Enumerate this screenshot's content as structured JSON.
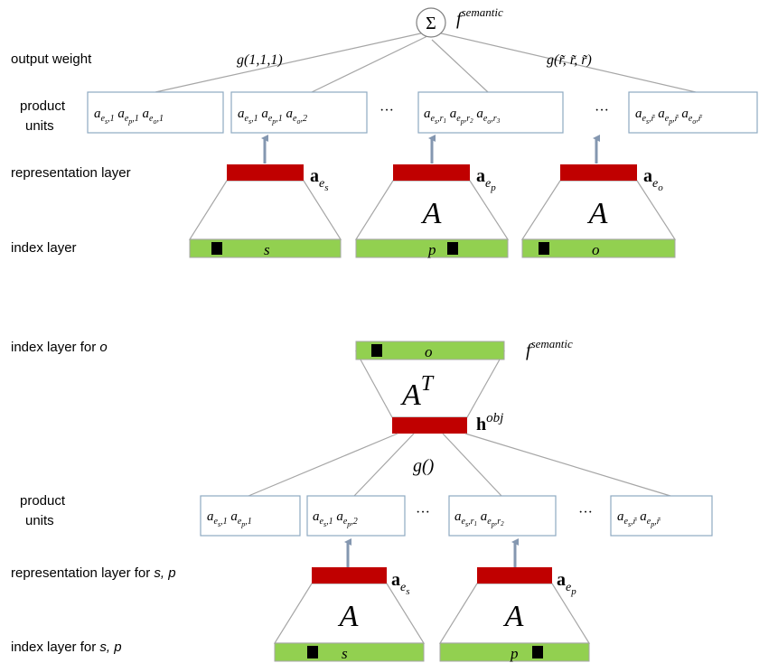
{
  "top": {
    "labels": {
      "output_weight": "output weight",
      "product_units_1": "product",
      "product_units_2": "units",
      "representation_layer": "representation layer",
      "index_layer": "index layer"
    },
    "sum_symbol": "Σ",
    "f_semantic_base": "f",
    "f_semantic_sup": "semantic",
    "weight_first": "g(1,1,1)",
    "weight_last": "g(r̃, r̃, r̃)",
    "ellipsis": "···",
    "matrix_label": "A",
    "vec_bold": "a",
    "entities": [
      "s",
      "p",
      "o"
    ],
    "product_units": [
      "a_{e_s,1} a_{e_p,1} a_{e_o,1}",
      "a_{e_s,1} a_{e_p,1} a_{e_o,2}",
      "a_{e_s,r_1} a_{e_p,r_2} a_{e_o,r_3}",
      "a_{e_s,r̃} a_{e_p,r̃} a_{e_o,r̃}"
    ]
  },
  "bottom": {
    "labels": {
      "index_layer_o_prefix": "index layer for ",
      "index_layer_o_var": "o",
      "product_units_1": "product",
      "product_units_2": "units",
      "representation_layer_prefix": "representation layer for ",
      "representation_layer_vars": "s, p",
      "index_layer_sp_prefix": "index layer for ",
      "index_layer_sp_vars": "s, p"
    },
    "f_semantic_base": "f",
    "f_semantic_sup": "semantic",
    "transpose_base": "A",
    "transpose_sup": "T",
    "h_base": "h",
    "h_sup": "obj",
    "g_label": "g()",
    "ellipsis": "···",
    "matrix_label": "A",
    "vec_bold": "a",
    "entities": [
      "s",
      "p",
      "o"
    ],
    "product_units": [
      "a_{e_s,1} a_{e_p,1}",
      "a_{e_s,1} a_{e_p,2}",
      "a_{e_s,r_1} a_{e_p,r_2}",
      "a_{e_s,r̃} a_{e_p,r̃}"
    ]
  },
  "colors": {
    "index_fill": "#92d050",
    "rep_fill": "#c00000",
    "line": "#a6a6a6",
    "arrow": "#8497b0",
    "box_border": "#8ea9c1"
  }
}
